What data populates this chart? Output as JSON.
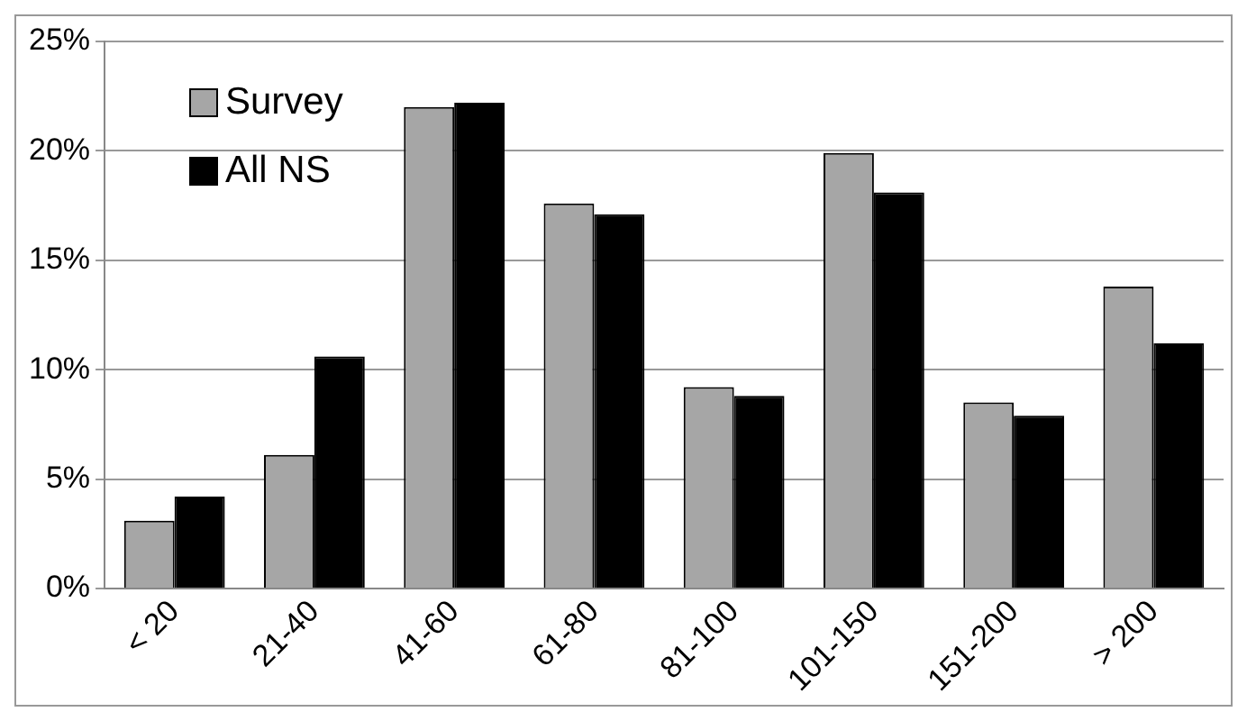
{
  "chart_data": {
    "type": "bar",
    "categories": [
      "< 20",
      "21-40",
      "41-60",
      "61-80",
      "81-100",
      "101-150",
      "151-200",
      "> 200"
    ],
    "series": [
      {
        "name": "Survey",
        "color": "#a6a6a6",
        "values": [
          3.1,
          6.1,
          22.0,
          17.6,
          9.2,
          19.9,
          8.5,
          13.8
        ]
      },
      {
        "name": "All NS",
        "color": "#000000",
        "values": [
          4.2,
          10.6,
          22.2,
          17.1,
          8.8,
          18.1,
          7.9,
          11.2
        ]
      }
    ],
    "ylim": [
      0,
      25
    ],
    "yticks": [
      {
        "value": 0,
        "label": "0%"
      },
      {
        "value": 5,
        "label": "5%"
      },
      {
        "value": 10,
        "label": "10%"
      },
      {
        "value": 15,
        "label": "15%"
      },
      {
        "value": 20,
        "label": "20%"
      },
      {
        "value": 25,
        "label": "25%"
      }
    ],
    "grid": "y",
    "legend": "top left"
  }
}
